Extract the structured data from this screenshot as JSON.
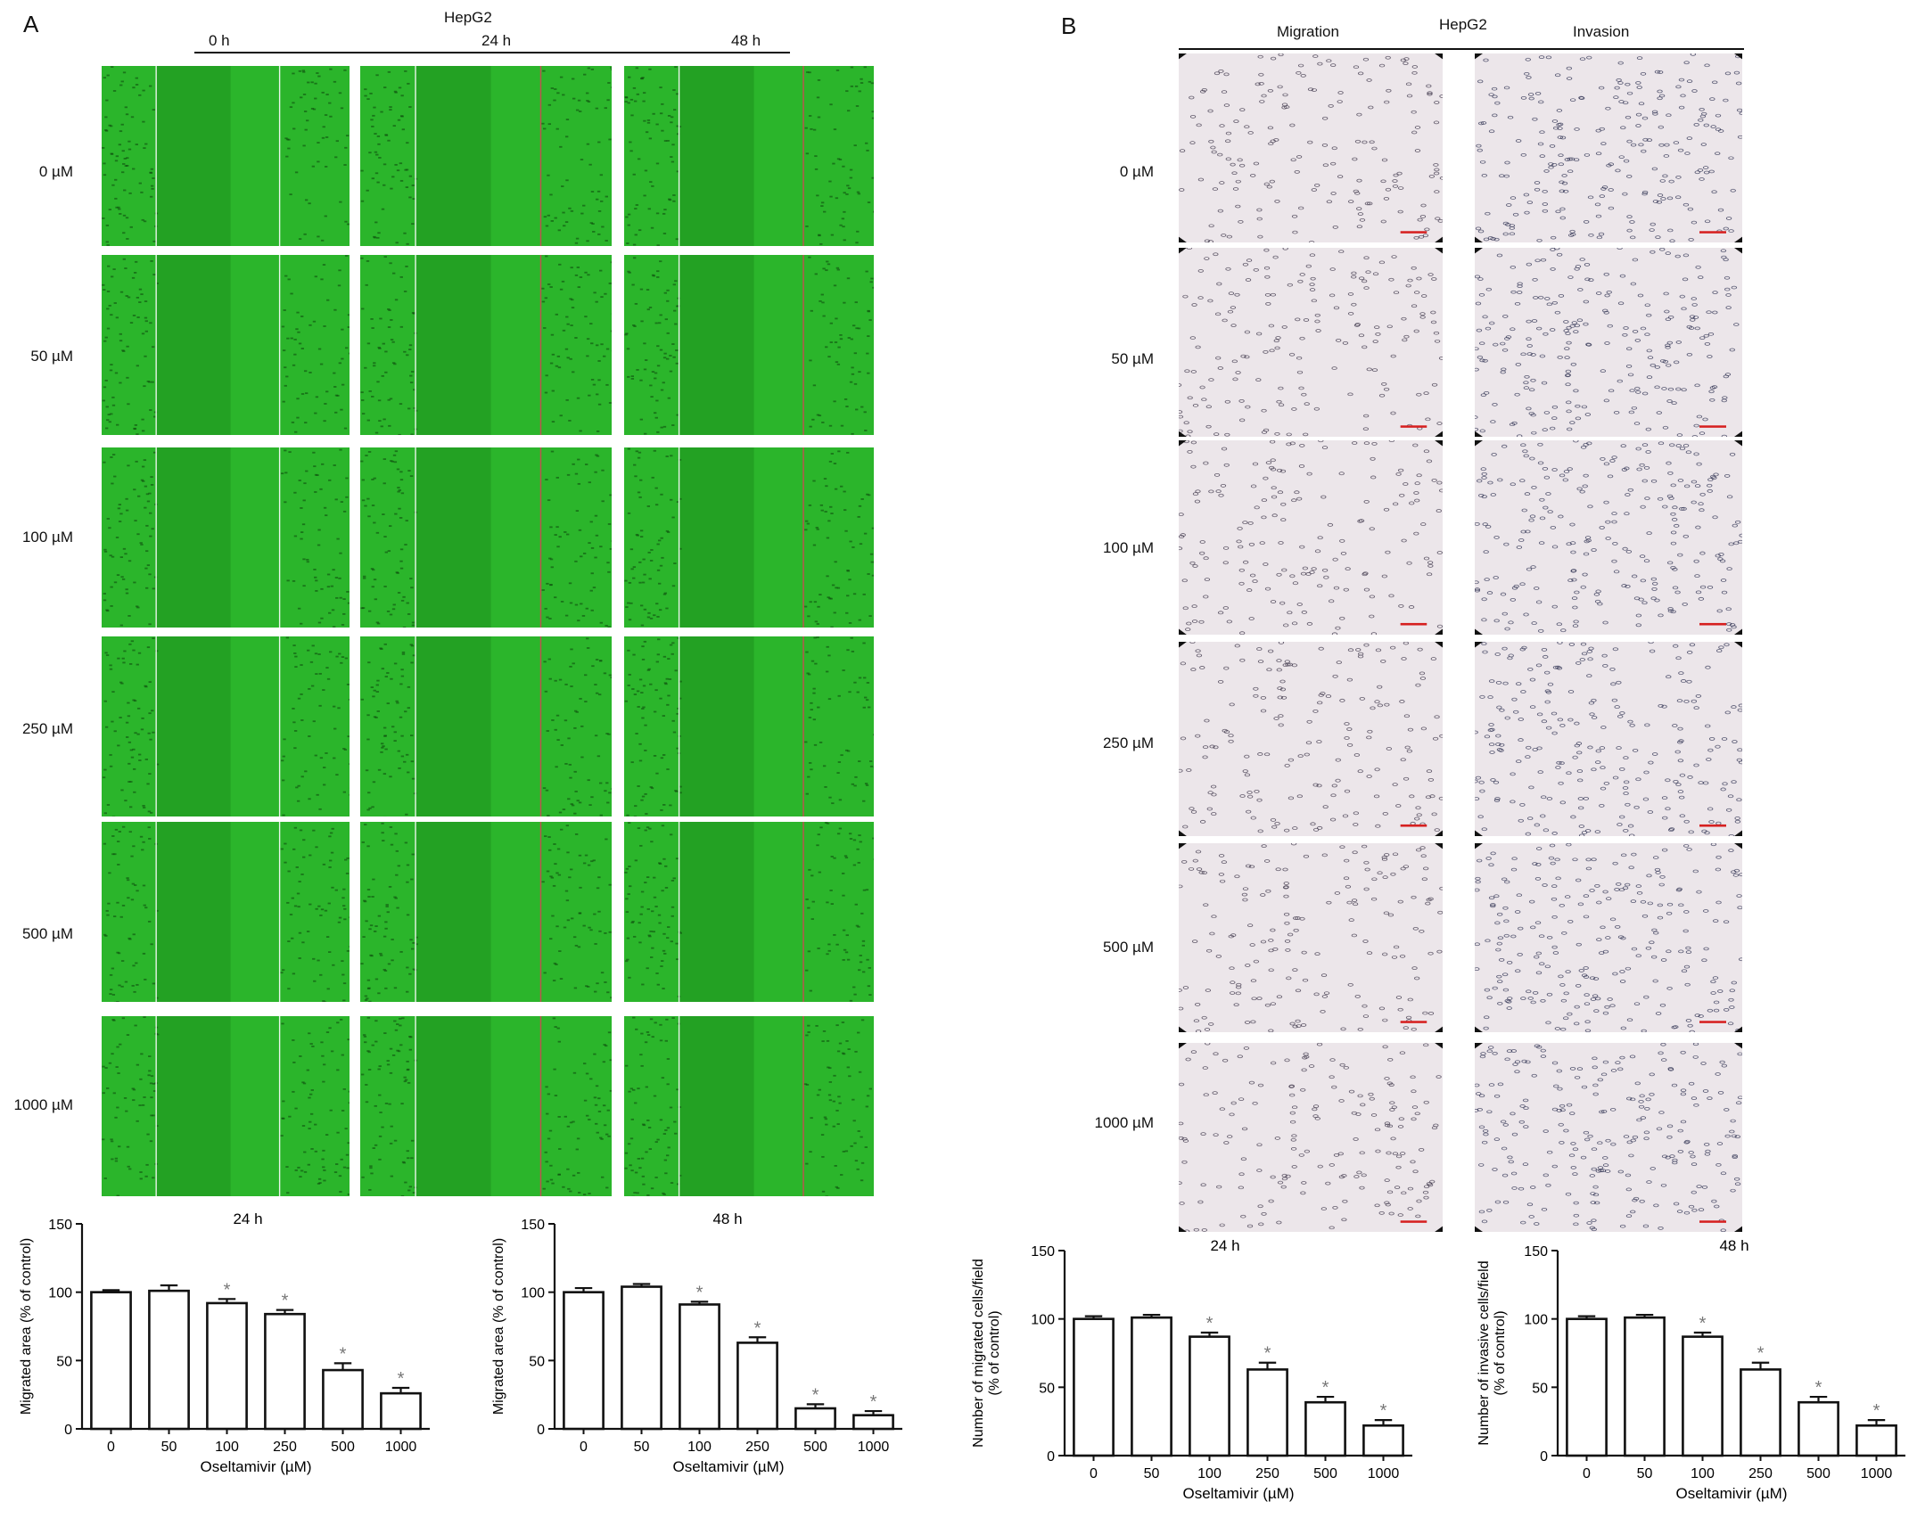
{
  "panel_a": {
    "letter": "A",
    "cell_line": "HepG2",
    "time_labels": [
      "0 h",
      "24 h",
      "48 h"
    ],
    "dose_labels": [
      "0 µM",
      "50 µM",
      "100 µM",
      "250 µM",
      "500 µM",
      "1000 µM"
    ],
    "tile_color": "#2bb52b"
  },
  "panel_b": {
    "letter": "B",
    "cell_line": "HepG2",
    "column_labels": [
      "Migration",
      "Invasion"
    ],
    "dose_labels": [
      "0 µM",
      "50 µM",
      "100 µM",
      "250 µM",
      "500 µM",
      "1000 µM"
    ],
    "tile_color": "#ece6ea",
    "scale_bar_color": "#d62020"
  },
  "chart_data": [
    {
      "type": "bar",
      "title": "24 h",
      "xlabel": "Oseltamivir (µM)",
      "ylabel": "Migrated area (% of control)",
      "categories": [
        "0",
        "50",
        "100",
        "250",
        "500",
        "1000"
      ],
      "values": [
        100,
        101,
        92,
        84,
        43,
        26
      ],
      "errors": [
        1.5,
        4,
        3,
        3,
        5,
        4
      ],
      "significant": [
        false,
        false,
        true,
        true,
        true,
        true
      ],
      "ylim": [
        0,
        150
      ],
      "yticks": [
        0,
        50,
        100,
        150
      ]
    },
    {
      "type": "bar",
      "title": "48 h",
      "xlabel": "Oseltamivir (µM)",
      "ylabel": "Migrated area (% of control)",
      "categories": [
        "0",
        "50",
        "100",
        "250",
        "500",
        "1000"
      ],
      "values": [
        100,
        104,
        91,
        63,
        15,
        10
      ],
      "errors": [
        3,
        2,
        2,
        4,
        3,
        3
      ],
      "significant": [
        false,
        false,
        true,
        true,
        true,
        true
      ],
      "ylim": [
        0,
        150
      ],
      "yticks": [
        0,
        50,
        100,
        150
      ]
    },
    {
      "type": "bar",
      "title": "24 h",
      "xlabel": "Oseltamivir (µM)",
      "ylabel": "Number of migrated cells/field (% of control)",
      "categories": [
        "0",
        "50",
        "100",
        "250",
        "500",
        "1000"
      ],
      "values": [
        100,
        101,
        87,
        63,
        39,
        22
      ],
      "errors": [
        2,
        2,
        3,
        5,
        4,
        4
      ],
      "significant": [
        false,
        false,
        true,
        true,
        true,
        true
      ],
      "ylim": [
        0,
        150
      ],
      "yticks": [
        0,
        50,
        100,
        150
      ]
    },
    {
      "type": "bar",
      "title": "48 h",
      "xlabel": "Oseltamivir (µM)",
      "ylabel": "Number of invasive cells/field (% of control)",
      "categories": [
        "0",
        "50",
        "100",
        "250",
        "500",
        "1000"
      ],
      "values": [
        100,
        101,
        87,
        63,
        39,
        22
      ],
      "errors": [
        2,
        2,
        3,
        5,
        4,
        4
      ],
      "significant": [
        false,
        false,
        true,
        true,
        true,
        true
      ],
      "ylim": [
        0,
        150
      ],
      "yticks": [
        0,
        50,
        100,
        150
      ]
    }
  ]
}
